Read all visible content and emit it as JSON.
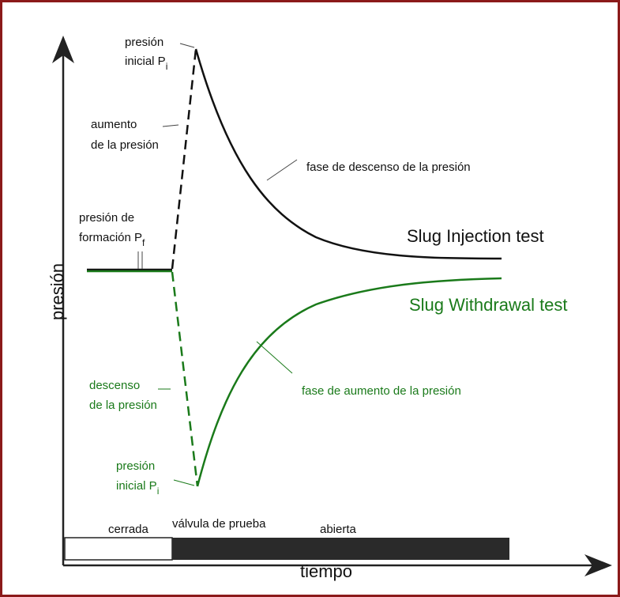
{
  "top_initial": {
    "line1": "presión",
    "line2": "inicial P",
    "sub": "i"
  },
  "pressure_rise": {
    "line1": "aumento",
    "line2": "de la presión"
  },
  "descent_phase": "fase de descenso de la presión",
  "formation": {
    "line1": "presión de",
    "line2": "formación P",
    "sub": "f"
  },
  "injection": "Slug Injection test",
  "withdrawal": "Slug Withdrawal test",
  "pressure_drop": {
    "line1": "descenso",
    "line2": "de la presión"
  },
  "rise_phase": "fase de aumento de la presión",
  "bottom_initial": {
    "line1": "presión",
    "line2": "inicial P",
    "sub": "i"
  },
  "valve": {
    "title": "válvula de prueba",
    "closed": "cerrada",
    "open": "abierta"
  },
  "x_axis": "tiempo",
  "y_axis": "presión"
}
